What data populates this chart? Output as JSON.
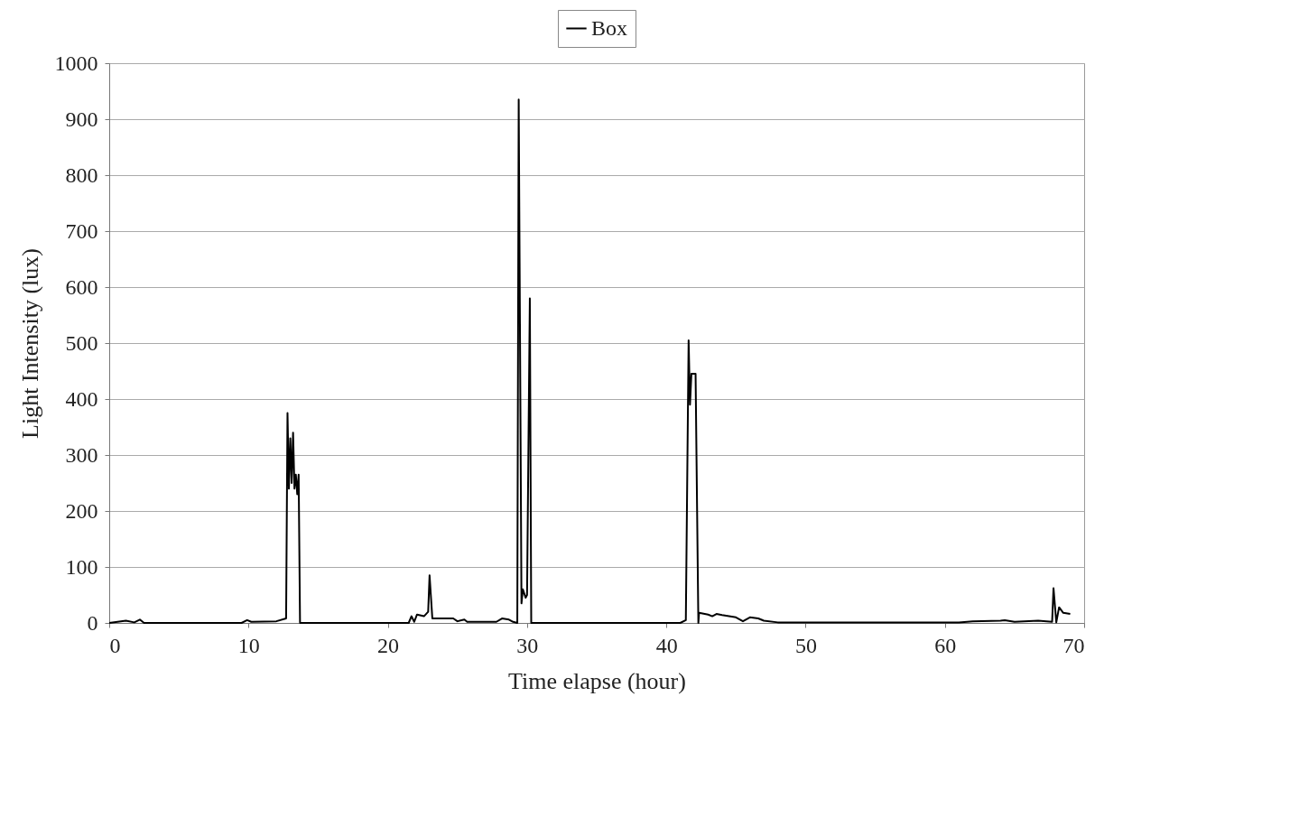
{
  "chart_data": {
    "type": "line",
    "xlabel": "Time elapse (hour)",
    "ylabel": "Light Intensity (lux)",
    "xlim": [
      0,
      70
    ],
    "xticks": [
      0,
      10,
      20,
      30,
      40,
      50,
      60,
      70
    ],
    "ylim": [
      0,
      1000
    ],
    "yticks": [
      0,
      100,
      200,
      300,
      400,
      500,
      600,
      700,
      800,
      900,
      1000
    ],
    "grid": "y",
    "legend": "top",
    "marker": "none",
    "line_style": "solid",
    "series": [
      {
        "name": "Box",
        "color": "#000000",
        "x": [
          0,
          1.2,
          1.8,
          2.2,
          2.5,
          9.5,
          9.9,
          10.2,
          12,
          12.7,
          12.8,
          12.9,
          13.0,
          13.1,
          13.2,
          13.3,
          13.4,
          13.5,
          13.6,
          13.7,
          21.5,
          21.7,
          21.9,
          22.1,
          22.6,
          22.9,
          23.0,
          23.2,
          24.7,
          25.0,
          25.5,
          25.7,
          27.8,
          28.2,
          28.7,
          29.0,
          29.3,
          29.4,
          29.6,
          29.7,
          29.9,
          30.0,
          30.2,
          30.3,
          41.0,
          41.4,
          41.6,
          41.7,
          41.8,
          42.1,
          42.3,
          42.35,
          43,
          43.3,
          43.6,
          44,
          45,
          45.5,
          46,
          46.6,
          47,
          48,
          51,
          61,
          62,
          64,
          64.3,
          65,
          66.7,
          67.3,
          67.7,
          67.8,
          68.0,
          68.2,
          68.5,
          69
        ],
        "values": [
          0,
          4,
          1,
          6,
          0,
          0,
          5,
          2,
          3,
          8,
          375,
          240,
          330,
          250,
          340,
          240,
          265,
          230,
          265,
          0,
          0,
          12,
          2,
          15,
          12,
          20,
          85,
          8,
          8,
          3,
          6,
          2,
          2,
          8,
          6,
          2,
          0,
          935,
          35,
          60,
          45,
          50,
          580,
          0,
          0,
          5,
          505,
          390,
          445,
          445,
          0,
          18,
          15,
          12,
          16,
          14,
          10,
          3,
          10,
          8,
          4,
          1,
          1,
          1,
          3,
          4,
          5,
          2,
          4,
          3,
          2,
          62,
          1,
          28,
          18,
          16
        ]
      }
    ]
  }
}
